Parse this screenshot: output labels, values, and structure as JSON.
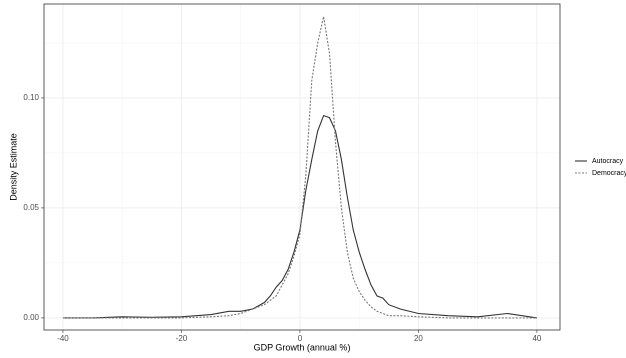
{
  "chart_data": {
    "type": "line",
    "x_label": "GDP Growth (annual %)",
    "y_label": "Density Estimate",
    "x": [
      -40,
      -35,
      -30,
      -25,
      -20,
      -15,
      -12,
      -10,
      -8,
      -6,
      -5,
      -4,
      -3,
      -2,
      -1,
      0,
      1,
      2,
      3,
      4,
      5,
      6,
      7,
      8,
      9,
      10,
      11,
      12,
      13,
      14,
      15,
      17,
      20,
      25,
      30,
      35,
      40
    ],
    "series": [
      {
        "name": "Autocracy",
        "color": "#333333",
        "dash": "solid",
        "values": [
          0,
          0,
          0.0005,
          0.0003,
          0.0005,
          0.0015,
          0.003,
          0.003,
          0.004,
          0.007,
          0.01,
          0.014,
          0.017,
          0.022,
          0.03,
          0.04,
          0.058,
          0.072,
          0.085,
          0.092,
          0.091,
          0.085,
          0.072,
          0.055,
          0.04,
          0.03,
          0.022,
          0.015,
          0.01,
          0.009,
          0.006,
          0.004,
          0.002,
          0.001,
          0.0005,
          0.002,
          0
        ]
      },
      {
        "name": "Democracy",
        "color": "#777777",
        "dash": "dashed",
        "values": [
          0,
          0,
          0,
          0,
          0,
          0.0005,
          0.001,
          0.002,
          0.004,
          0.006,
          0.008,
          0.01,
          0.015,
          0.02,
          0.028,
          0.038,
          0.065,
          0.108,
          0.125,
          0.137,
          0.12,
          0.08,
          0.05,
          0.03,
          0.018,
          0.012,
          0.008,
          0.005,
          0.003,
          0.002,
          0.001,
          0.001,
          0.0005,
          0,
          0,
          0,
          0
        ]
      }
    ],
    "xlim": [
      -43.2,
      43.9
    ],
    "xticks": [
      -40,
      -20,
      0,
      20,
      40
    ],
    "ylim": [
      -0.0055,
      0.1427
    ],
    "yticks": [
      {
        "value": 0,
        "label": "0.00"
      },
      0.05,
      {
        "value": 0.1,
        "label": "0.10"
      }
    ],
    "grid": true,
    "legend_position": "right"
  }
}
